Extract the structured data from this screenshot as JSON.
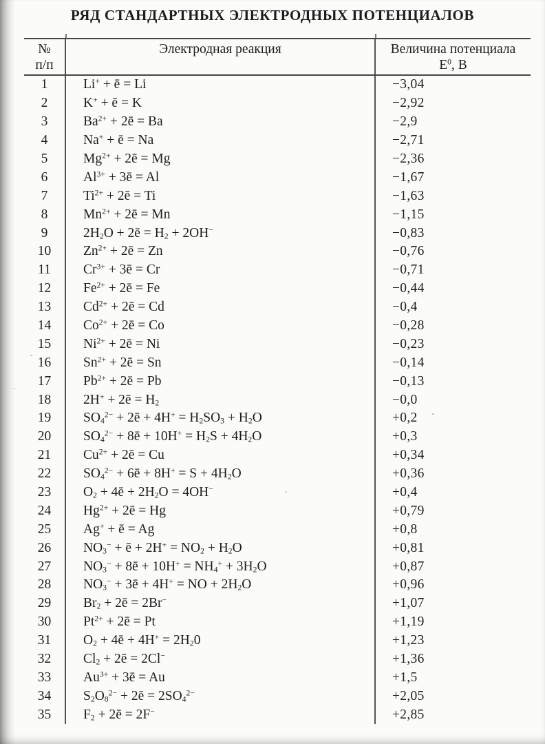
{
  "page": {
    "title": "РЯД СТАНДАРТНЫХ ЭЛЕКТРОДНЫХ ПОТЕНЦИАЛОВ",
    "ink_color": "#1d1d1d",
    "line_color": "#454545",
    "paper_color": "#fbfbf9"
  },
  "table": {
    "headers": {
      "num_line1": "№",
      "num_line2": "п/п",
      "reaction": "Электродная реакция",
      "potential_line1": "Величина потенциала",
      "potential_line2": "Е^{0}, В"
    },
    "rows": [
      {
        "num": "1",
        "reaction": "Li^{+} + ē = Li",
        "potential": "−3,04"
      },
      {
        "num": "2",
        "reaction": "K^{+} + ē = K",
        "potential": "−2,92"
      },
      {
        "num": "3",
        "reaction": "Ba^{2+} + 2ē = Ba",
        "potential": "−2,9"
      },
      {
        "num": "4",
        "reaction": "Na^{+} + ē = Na",
        "potential": "−2,71"
      },
      {
        "num": "5",
        "reaction": "Mg^{2+} + 2ē = Mg",
        "potential": "−2,36"
      },
      {
        "num": "6",
        "reaction": "Al^{3+} + 3ē = Al",
        "potential": "−1,67"
      },
      {
        "num": "7",
        "reaction": "Ti^{2+} + 2ē = Ti",
        "potential": "−1,63"
      },
      {
        "num": "8",
        "reaction": "Mn^{2+} + 2ē = Mn",
        "potential": "−1,15"
      },
      {
        "num": "9",
        "reaction": "2H_{2}O + 2ē = H_{2} + 2OH^{−}",
        "potential": "−0,83"
      },
      {
        "num": "10",
        "reaction": "Zn^{2+} + 2ē = Zn",
        "potential": "−0,76"
      },
      {
        "num": "11",
        "reaction": "Cr^{3+} + 3ē = Cr",
        "potential": "−0,71"
      },
      {
        "num": "12",
        "reaction": "Fe^{2+} + 2ē = Fe",
        "potential": "−0,44"
      },
      {
        "num": "13",
        "reaction": "Cd^{2+} + 2ē = Cd",
        "potential": "−0,4"
      },
      {
        "num": "14",
        "reaction": "Co^{2+} + 2ē = Co",
        "potential": "−0,28"
      },
      {
        "num": "15",
        "reaction": "Ni^{2+} + 2ē = Ni",
        "potential": "−0,23"
      },
      {
        "num": "16",
        "reaction": "Sn^{2+} + 2ē = Sn",
        "potential": "−0,14"
      },
      {
        "num": "17",
        "reaction": "Pb^{2+} + 2ē = Pb",
        "potential": "−0,13"
      },
      {
        "num": "18",
        "reaction": "2H^{+} + 2ē = H_{2}",
        "potential": "−0,0"
      },
      {
        "num": "19",
        "reaction": "SO_{4}^{2−} + 2ē + 4H^{+} = H_{2}SO_{3} + H_{2}O",
        "potential": "+0,2"
      },
      {
        "num": "20",
        "reaction": "SO_{4}^{2−} + 8ē + 10H^{+} = H_{2}S + 4H_{2}O",
        "potential": "+0,3"
      },
      {
        "num": "21",
        "reaction": "Cu^{2+} + 2ē = Cu",
        "potential": "+0,34"
      },
      {
        "num": "22",
        "reaction": "SO_{4}^{2−} + 6ē + 8H^{+} = S + 4H_{2}O",
        "potential": "+0,36"
      },
      {
        "num": "23",
        "reaction": "O_{2} + 4ē + 2H_{2}O = 4OH^{−}",
        "potential": "+0,4"
      },
      {
        "num": "24",
        "reaction": "Hg^{2+} + 2ē = Hg",
        "potential": "+0,79"
      },
      {
        "num": "25",
        "reaction": "Ag^{+} + ē = Ag",
        "potential": "+0,8"
      },
      {
        "num": "26",
        "reaction": "NO_{3}^{−} + ē + 2H^{+} = NO_{2} + H_{2}O",
        "potential": "+0,81"
      },
      {
        "num": "27",
        "reaction": "NO_{3}^{−} + 8ē + 10H^{+} = NH_{4}^{+} + 3H_{2}O",
        "potential": "+0,87"
      },
      {
        "num": "28",
        "reaction": "NO_{3}^{−} + 3ē + 4H^{+} = NO + 2H_{2}O",
        "potential": "+0,96"
      },
      {
        "num": "29",
        "reaction": "Br_{2} + 2ē = 2Br^{−}",
        "potential": "+1,07"
      },
      {
        "num": "30",
        "reaction": "Pt^{2+} + 2ē = Pt",
        "potential": "+1,19"
      },
      {
        "num": "31",
        "reaction": "O_{2} + 4ē + 4H^{+} = 2H_{2}0",
        "potential": "+1,23"
      },
      {
        "num": "32",
        "reaction": "Cl_{2} + 2ē = 2Cl^{−}",
        "potential": "+1,36"
      },
      {
        "num": "33",
        "reaction": "Au^{3+} + 3ē = Au",
        "potential": "+1,5"
      },
      {
        "num": "34",
        "reaction": "S_{2}O_{8}^{2−} + 2ē = 2SO_{4}^{2−}",
        "potential": "+2,05"
      },
      {
        "num": "35",
        "reaction": "F_{2} + 2ē = 2F^{−}",
        "potential": "+2,85"
      }
    ]
  }
}
